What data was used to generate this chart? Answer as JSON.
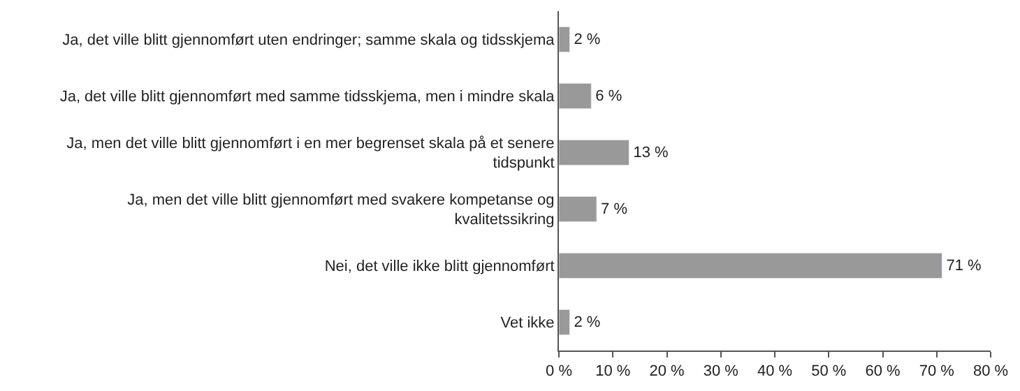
{
  "chart_data": {
    "type": "bar",
    "orientation": "horizontal",
    "categories": [
      "Ja, det ville blitt gjennomført uten endringer; samme skala og tidsskjema",
      "Ja, det ville blitt gjennomført med samme tidsskjema, men i mindre skala",
      "Ja, men det ville blitt gjennomført i en mer begrenset skala på et senere\ntidspunkt",
      "Ja, men det ville blitt gjennomført med svakere kompetanse og\nkvalitetssikring",
      "Nei, det ville ikke blitt gjennomført",
      "Vet ikke"
    ],
    "values": [
      2,
      6,
      13,
      7,
      71,
      2
    ],
    "value_labels": [
      "2 %",
      "6 %",
      "13 %",
      "7 %",
      "71 %",
      "2 %"
    ],
    "color": "#999999",
    "xlim": [
      0,
      80
    ],
    "xticks": [
      {
        "value": 0,
        "label": "0 %"
      },
      {
        "value": 10,
        "label": "10 %"
      },
      {
        "value": 20,
        "label": "20 %"
      },
      {
        "value": 30,
        "label": "30 %"
      },
      {
        "value": 40,
        "label": "40 %"
      },
      {
        "value": 50,
        "label": "50 %"
      },
      {
        "value": 60,
        "label": "60 %"
      },
      {
        "value": 70,
        "label": "70 %"
      },
      {
        "value": 80,
        "label": "80 %"
      }
    ],
    "legend": false
  }
}
